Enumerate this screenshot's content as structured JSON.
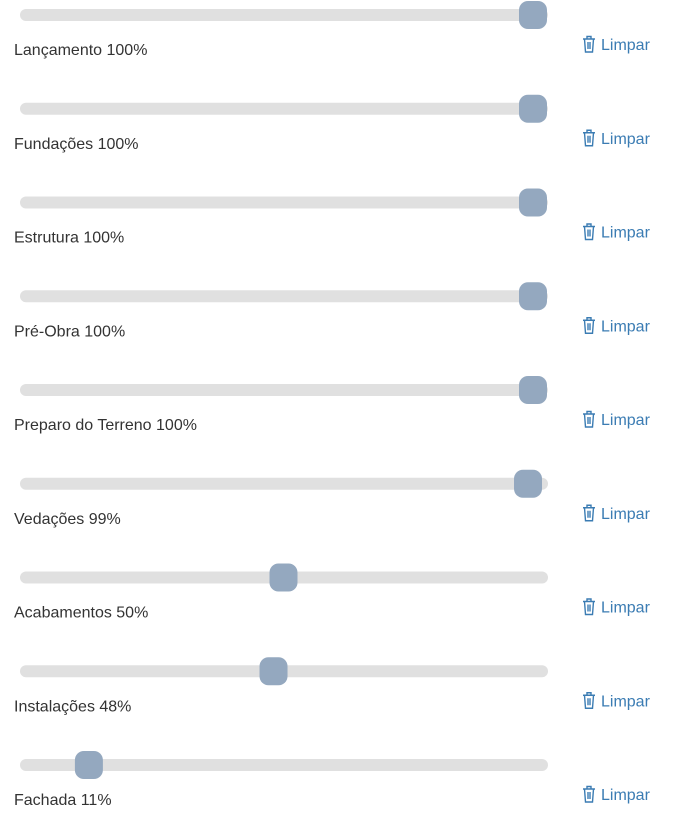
{
  "slider_range": [
    0,
    100
  ],
  "clear_button_label": "Limpar",
  "items": [
    {
      "label": "Lançamento 100%",
      "value": 100
    },
    {
      "label": "Fundações 100%",
      "value": 100
    },
    {
      "label": "Estrutura 100%",
      "value": 100
    },
    {
      "label": "Pré-Obra 100%",
      "value": 100
    },
    {
      "label": "Preparo do Terreno 100%",
      "value": 100
    },
    {
      "label": "Vedações 99%",
      "value": 99
    },
    {
      "label": "Acabamentos 50%",
      "value": 50
    },
    {
      "label": "Instalações 48%",
      "value": 48
    },
    {
      "label": "Fachada 11%",
      "value": 11
    }
  ]
}
